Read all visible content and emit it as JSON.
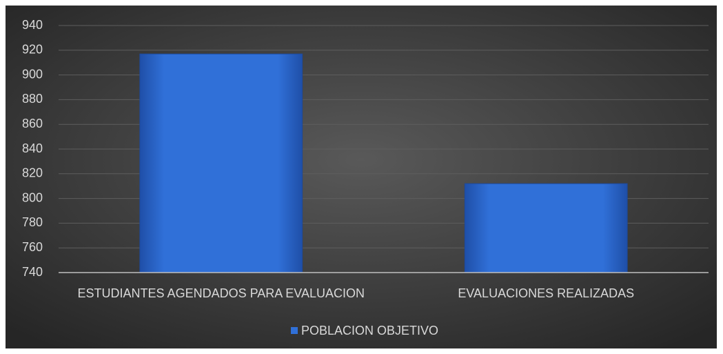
{
  "chart_data": {
    "type": "bar",
    "categories": [
      "ESTUDIANTES AGENDADOS PARA EVALUACION",
      "EVALUACIONES REALIZADAS"
    ],
    "series": [
      {
        "name": "POBLACION OBJETIVO",
        "color": "#3070d8",
        "values": [
          917,
          812
        ]
      }
    ],
    "ylim": [
      740,
      940
    ],
    "yticks": [
      740,
      760,
      780,
      800,
      820,
      840,
      860,
      880,
      900,
      920,
      940
    ],
    "grid": true,
    "legend": "bottom"
  }
}
